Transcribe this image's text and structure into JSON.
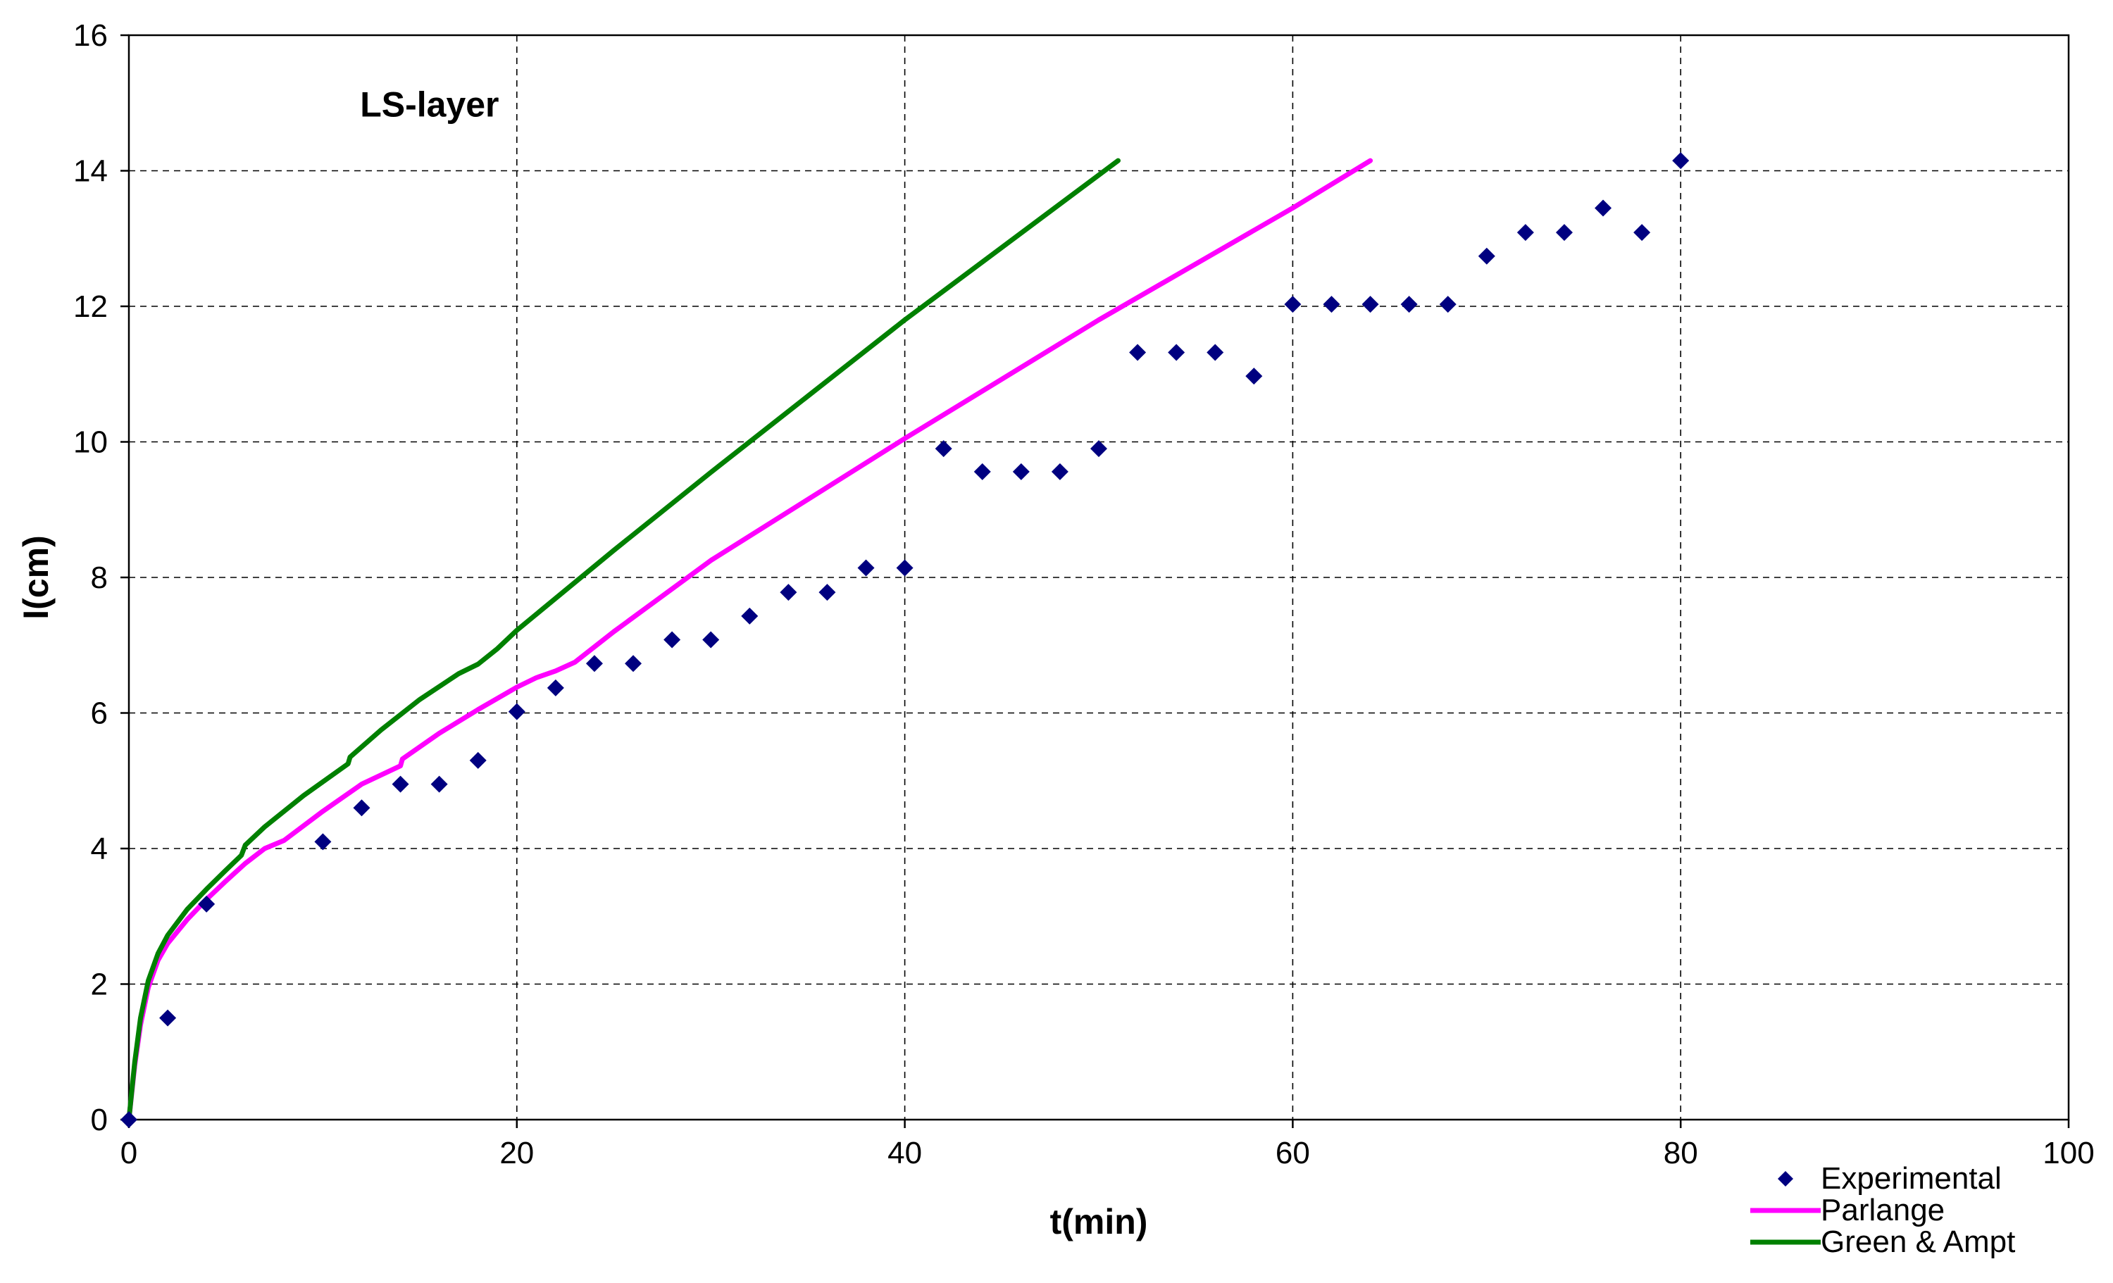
{
  "chart_data": {
    "type": "scatter",
    "title": "",
    "annotation": "LS-layer",
    "xlabel": "t(min)",
    "ylabel": "I(cm)",
    "xlim": [
      0,
      100
    ],
    "ylim": [
      0,
      16
    ],
    "xticks": [
      "0",
      "20",
      "40",
      "60",
      "80",
      "100"
    ],
    "yticks": [
      "0",
      "2",
      "4",
      "6",
      "8",
      "10",
      "12",
      "14",
      "16"
    ],
    "grid": true,
    "legend_position": "bottom-right",
    "series": [
      {
        "name": "Experimental",
        "kind": "scatter",
        "marker": "diamond",
        "color": "#000080",
        "x": [
          0,
          2,
          4,
          10,
          12,
          14,
          16,
          18,
          20,
          22,
          24,
          26,
          28,
          30,
          32,
          34,
          36,
          38,
          40,
          42,
          44,
          46,
          48,
          50,
          52,
          54,
          56,
          58,
          60,
          62,
          64,
          66,
          68,
          70,
          72,
          74,
          76,
          78,
          80
        ],
        "y": [
          0,
          1.5,
          3.18,
          4.1,
          4.6,
          4.95,
          4.95,
          5.3,
          6.02,
          6.37,
          6.73,
          6.73,
          7.08,
          7.08,
          7.43,
          7.78,
          7.78,
          8.14,
          8.14,
          9.9,
          9.56,
          9.56,
          9.56,
          9.9,
          11.32,
          11.32,
          11.32,
          10.97,
          12.03,
          12.03,
          12.03,
          12.03,
          12.03,
          12.74,
          13.09,
          13.09,
          13.45,
          13.09,
          14.15
        ]
      },
      {
        "name": "Parlange",
        "kind": "line",
        "color": "#FF00FF",
        "x": [
          0,
          0.3,
          0.6,
          1,
          1.5,
          2,
          3,
          4,
          5,
          6,
          7,
          8,
          10,
          12,
          14,
          14.1,
          16,
          18,
          20,
          21,
          22,
          23,
          25,
          30,
          40,
          50,
          60,
          64
        ],
        "y": [
          0,
          0.8,
          1.4,
          1.95,
          2.35,
          2.6,
          2.95,
          3.25,
          3.52,
          3.78,
          4.0,
          4.12,
          4.55,
          4.95,
          5.22,
          5.32,
          5.7,
          6.05,
          6.38,
          6.52,
          6.62,
          6.75,
          7.2,
          8.25,
          10.05,
          11.8,
          13.45,
          14.15
        ]
      },
      {
        "name": "Green & Ampt",
        "kind": "line",
        "color": "#008000",
        "x": [
          0,
          0.3,
          0.6,
          1,
          1.5,
          2,
          3,
          4,
          5,
          5.8,
          6,
          7,
          9,
          11.3,
          11.4,
          13,
          15,
          17,
          18,
          19,
          20,
          25,
          30,
          40,
          51
        ],
        "y": [
          0,
          0.85,
          1.5,
          2.05,
          2.45,
          2.72,
          3.1,
          3.4,
          3.68,
          3.9,
          4.05,
          4.32,
          4.78,
          5.25,
          5.35,
          5.75,
          6.2,
          6.58,
          6.72,
          6.95,
          7.22,
          8.4,
          9.55,
          11.8,
          14.15
        ]
      }
    ]
  }
}
